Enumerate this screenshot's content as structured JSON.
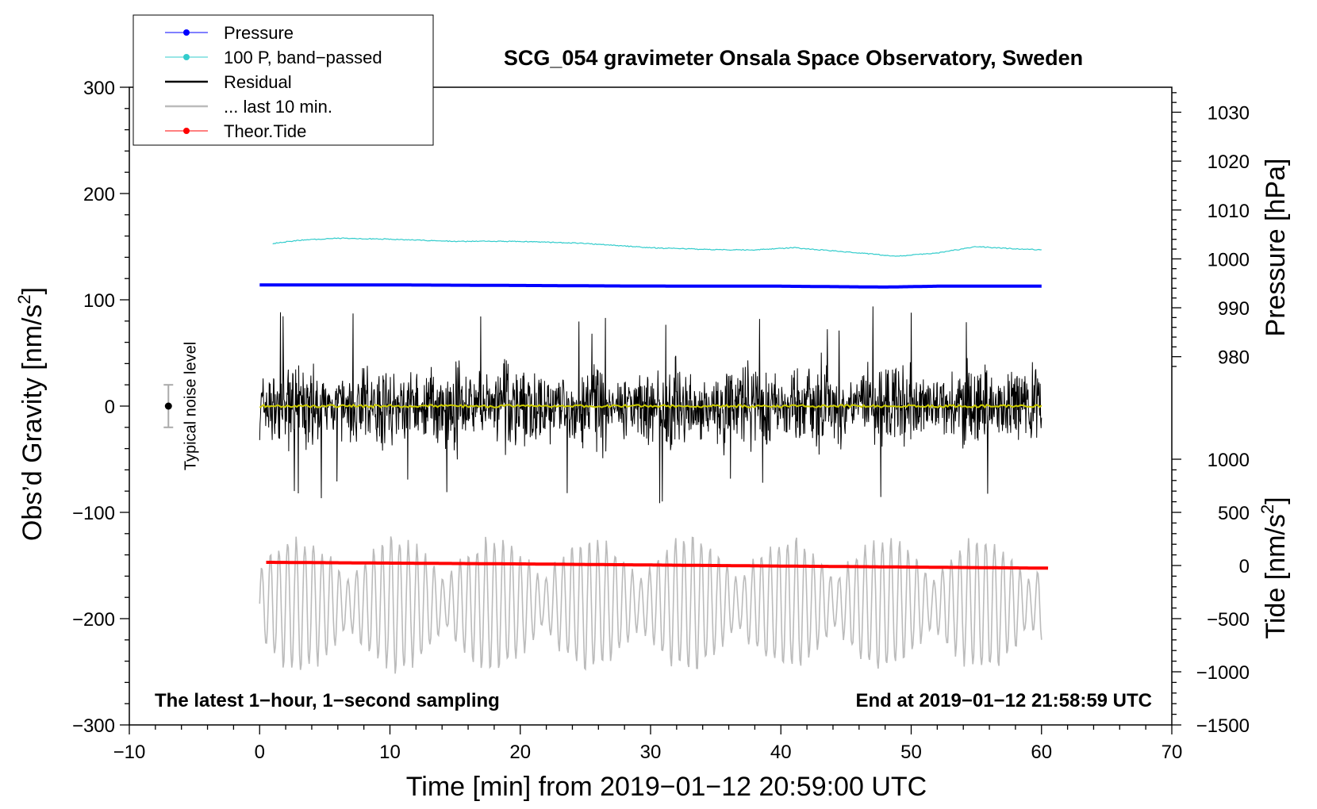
{
  "chart_data": {
    "type": "line",
    "title": "SCG_054 gravimeter Onsala Space Observatory, Sweden",
    "xlabel": "Time [min] from 2019−01−12 20:59:00 UTC",
    "ylabel_left": "Obs’d Gravity [nm/s",
    "ylabel_left_sup": "2",
    "ylabel_left_close": "]",
    "ylabel_right_top": "Pressure [hPa]",
    "ylabel_right_bottom": "Tide [nm/s",
    "ylabel_right_bottom_sup": "2",
    "ylabel_right_bottom_close": "]",
    "xlim": [
      -10,
      70
    ],
    "ylim_left": [
      -300,
      300
    ],
    "x_ticks": [
      "−10",
      "0",
      "10",
      "20",
      "30",
      "40",
      "50",
      "60",
      "70"
    ],
    "x_tick_values": [
      -10,
      0,
      10,
      20,
      30,
      40,
      50,
      60,
      70
    ],
    "y_left_ticks": [
      "300",
      "200",
      "100",
      "0",
      "−100",
      "−200",
      "−300"
    ],
    "y_left_tick_values": [
      300,
      200,
      100,
      0,
      -100,
      -200,
      -300
    ],
    "pressure_axis": {
      "ticks": [
        "1030",
        "1020",
        "1010",
        "1000",
        "990",
        "980"
      ],
      "values": [
        1030,
        1020,
        1010,
        1000,
        990,
        980
      ],
      "ref_value": 1030,
      "ref_gravity": 276.5,
      "gravity_per_hPa": 4.6
    },
    "tide_axis": {
      "ticks": [
        "1000",
        "500",
        "0",
        "−500",
        "−1000",
        "−1500"
      ],
      "values": [
        1000,
        500,
        0,
        -500,
        -1000,
        -1500
      ],
      "ref_value": 0,
      "ref_gravity": -150,
      "gravity_per_unit": 0.1
    },
    "series": [
      {
        "name": "Pressure",
        "color": "#0000ff",
        "x": [
          0,
          10,
          20,
          28,
          40,
          48,
          52,
          60
        ],
        "y": [
          114,
          114,
          113.5,
          113,
          112.8,
          112,
          112.8,
          112.8
        ]
      },
      {
        "name": "100 P, band−passed",
        "color": "#33cccc",
        "x": [
          1,
          3,
          6,
          10,
          15,
          20,
          25,
          30,
          35,
          38,
          41,
          45,
          49,
          52,
          55,
          58,
          60
        ],
        "y": [
          153,
          156,
          158,
          157,
          155,
          155,
          153,
          149,
          147,
          147,
          149,
          145,
          141,
          144,
          150,
          148,
          147
        ]
      },
      {
        "name": "Residual",
        "color": "#000000",
        "x_range": [
          0,
          60
        ],
        "range": [
          -97,
          95
        ]
      },
      {
        "name": "... last 10 min.",
        "color": "#bbbbbb",
        "x_range": [
          0,
          60
        ],
        "range": [
          -253,
          -119
        ]
      },
      {
        "name": "Theor.Tide",
        "color": "#ff0000",
        "x": [
          0.5,
          20,
          40,
          60.5
        ],
        "y": [
          -147,
          -148.5,
          -150.5,
          -152.5
        ]
      }
    ],
    "noise_level": {
      "label": "Typical noise level",
      "x": -7,
      "y": 0,
      "error": 20
    },
    "annotations": {
      "left_bottom": "The latest 1−hour, 1−second sampling",
      "right_bottom": "End at 2019−01−12 21:58:59 UTC"
    },
    "legend": [
      {
        "label": "Pressure",
        "color": "#0000ff",
        "marker": true
      },
      {
        "label": "100 P, band−passed",
        "color": "#33cccc",
        "marker": true
      },
      {
        "label": "Residual",
        "color": "#000000",
        "marker": false
      },
      {
        "label": "... last 10 min.",
        "color": "#bbbbbb",
        "marker": false
      },
      {
        "label": "Theor.Tide",
        "color": "#ff0000",
        "marker": true
      }
    ]
  }
}
